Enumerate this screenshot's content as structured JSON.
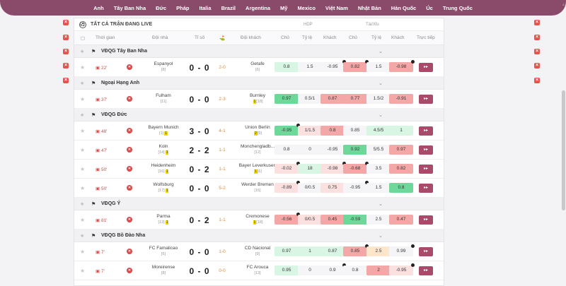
{
  "nav": [
    "Anh",
    "Tây Ban Nha",
    "Đức",
    "Pháp",
    "Italia",
    "Brazil",
    "Argentina",
    "Mỹ",
    "Mexico",
    "Việt Nam",
    "Nhật Bản",
    "Hàn Quốc",
    "Úc",
    "Trung Quốc"
  ],
  "panel": {
    "title": "TẤT CẢ TRẬN ĐANG LIVE",
    "group_hdp": "HDP",
    "group_taixiu": "Tài/Xỉu",
    "columns": {
      "time": "Thời gian",
      "home": "Đội nhà",
      "score": "Tỉ số",
      "away": "Đội khách",
      "hdp_home": "Chủ",
      "hdp_rate": "Tỷ lệ",
      "hdp_away": "Khách",
      "tx_home": "Chủ",
      "tx_rate": "Tỷ lệ",
      "tx_away": "Khách",
      "live": "Trực tiếp"
    }
  },
  "colors": {
    "nav_bg": "#8a4a6a",
    "accent": "#a84a6a",
    "red": "#d94a4a",
    "green": "#6ed79a",
    "pink": "#f3a7a7"
  },
  "leagues": [
    {
      "name": "VĐQG Tây Ban Nha",
      "flag": "spain-flag-icon"
    },
    {
      "name": "Ngoại Hạng Anh",
      "flag": "premier-league-icon"
    },
    {
      "name": "VĐQG Đức",
      "flag": "germany-flag-icon"
    },
    {
      "name": "VĐQG Ý",
      "flag": "italy-flag-icon"
    },
    {
      "name": "VĐQG Bồ Đào Nha",
      "flag": "portugal-flag-icon"
    }
  ],
  "matches": [
    {
      "time": "22'",
      "home": "Espanyol",
      "home_rank": "[8]",
      "score": "0 - 0",
      "ht": "2-0",
      "away": "Getafe",
      "away_rank": "[6]",
      "odds": [
        "0.8",
        "1.5",
        "-0.95",
        "0.82",
        "1.5",
        "-0.98"
      ]
    },
    {
      "time": "37'",
      "home": "Fulham",
      "home_rank": "[11]",
      "score": "0 - 0",
      "ht": "2-3",
      "away": "Burnley",
      "away_rank": "[18]",
      "away_card": "1",
      "odds": [
        "0.97",
        "0.5/1",
        "0.87",
        "0.77",
        "1.5/2",
        "-0.91"
      ]
    },
    {
      "time": "48'",
      "home": "Bayern Munich",
      "home_rank": "[1]",
      "home_card": "1",
      "score": "3 - 0",
      "ht": "4-1",
      "away": "Union Berlin",
      "away_rank": "[9]",
      "away_card": "2",
      "odds": [
        "-0.95",
        "1/1.5",
        "0.8",
        "0.85",
        "4.5/5",
        "1"
      ]
    },
    {
      "time": "47'",
      "home": "Koln",
      "home_rank": "[14]",
      "home_card": "1",
      "score": "2 - 2",
      "ht": "1-1",
      "away": "Monchengladb...",
      "away_rank": "[12]",
      "odds": [
        "0.8",
        "0",
        "-0.95",
        "0.92",
        "5/5.5",
        "0.97"
      ]
    },
    {
      "time": "50'",
      "home": "Heidenheim",
      "home_rank": "[16]",
      "home_card": "1",
      "score": "0 - 2",
      "ht": "1-1",
      "away": "Bayer Leverkusen",
      "away_rank": "[6]",
      "away_card": "1",
      "odds": [
        "-0.02",
        "18",
        "-0.98",
        "-0.68",
        "3.5",
        "0.82"
      ]
    },
    {
      "time": "50'",
      "home": "Wolfsburg",
      "home_rank": "[17]",
      "home_card": "1",
      "score": "0 - 0",
      "ht": "5-2",
      "away": "Werder Bremen",
      "away_rank": "[15]",
      "odds": [
        "-0.89",
        "0/0.5",
        "0.75",
        "-0.95",
        "1.5",
        "0.8"
      ]
    },
    {
      "time": "81'",
      "home": "Parma",
      "home_rank": "[13]",
      "home_card": "1",
      "score": "0 - 2",
      "ht": "1-1",
      "away": "Cremonese",
      "away_rank": "[18]",
      "away_card": "1",
      "odds": [
        "-0.56",
        "0/0.5",
        "0.45",
        "-0.59",
        "2.5",
        "0.47"
      ]
    },
    {
      "time": "7'",
      "home": "FC Famalicao",
      "home_rank": "[6]",
      "score": "0 - 0",
      "ht": "1-0",
      "away": "CD Nacional",
      "away_rank": "[9]",
      "odds": [
        "0.97",
        "1",
        "0.87",
        "0.85",
        "2.5",
        "0.99"
      ]
    },
    {
      "time": "7'",
      "home": "Moreirense",
      "home_rank": "[8]",
      "score": "0 - 0",
      "ht": "0-0",
      "away": "FC Arouca",
      "away_rank": "[13]",
      "odds": [
        "0.95",
        "0",
        "0.9",
        "0.8",
        "2",
        "-0.95"
      ]
    }
  ]
}
